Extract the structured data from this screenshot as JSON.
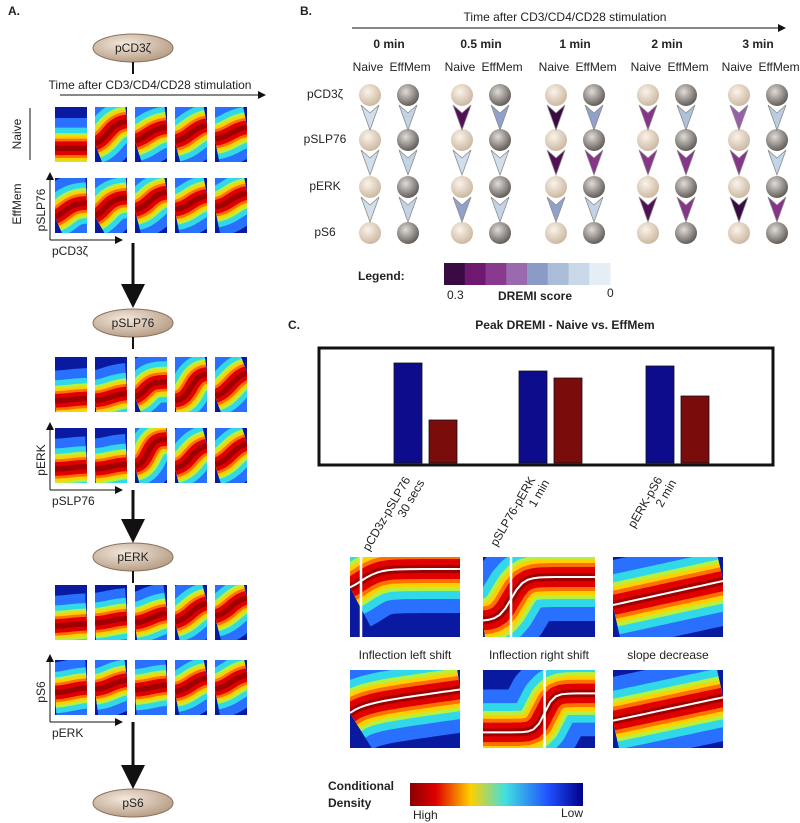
{
  "panel_a": {
    "label": "A.",
    "nodes": [
      "pCD3ζ",
      "pSLP76",
      "pERK",
      "pS6"
    ],
    "time_axis": "Time after CD3/CD4/CD28 stimulation",
    "row_labels": [
      "Naive",
      "EffMem"
    ],
    "plots": [
      {
        "y_label": "pSLP76",
        "x_label": "pCD3ζ"
      },
      {
        "y_label": "pERK",
        "x_label": "pSLP76"
      },
      {
        "y_label": "pS6",
        "x_label": "pERK"
      }
    ]
  },
  "panel_b": {
    "label": "B.",
    "title": "Time after CD3/CD4/CD28 stimulation",
    "times": [
      "0 min",
      "0.5 min",
      "1 min",
      "2 min",
      "3 min"
    ],
    "populations": [
      "Naive",
      "EffMem"
    ],
    "proteins": [
      "pCD3ζ",
      "pSLP76",
      "pERK",
      "pS6"
    ],
    "scores": [
      [
        [
          0.03,
          0.03,
          0.03
        ],
        [
          0.05,
          0.05,
          0.05
        ]
      ],
      [
        [
          0.28,
          0.03,
          0.12
        ],
        [
          0.12,
          0.03,
          0.05
        ]
      ],
      [
        [
          0.3,
          0.28,
          0.12
        ],
        [
          0.12,
          0.22,
          0.05
        ]
      ],
      [
        [
          0.22,
          0.22,
          0.28
        ],
        [
          0.08,
          0.22,
          0.22
        ]
      ],
      [
        [
          0.18,
          0.22,
          0.3
        ],
        [
          0.06,
          0.05,
          0.22
        ]
      ]
    ],
    "legend": {
      "title": "Legend:",
      "label": "DREMI score",
      "ticks": [
        0.3,
        0
      ],
      "colors": [
        "#3a0a42",
        "#6e1870",
        "#8a3a8e",
        "#9a6aae",
        "#8c9ac8",
        "#a9bdd9",
        "#c8d8e8",
        "#e6eef5"
      ]
    }
  },
  "chart_data": {
    "type": "bar",
    "title": "Peak DREMI - Naive vs. EffMem",
    "categories": [
      "pCD3z-pSLP76",
      "pSLP76-pERK",
      "pERK-pS6"
    ],
    "category_times": [
      "30 secs",
      "1 min",
      "2 min"
    ],
    "series": [
      {
        "color": "#0c0c8c",
        "values": [
          100,
          92,
          97
        ]
      },
      {
        "color": "#7a0c0c",
        "values": [
          43,
          85,
          67
        ]
      }
    ],
    "ylim": [
      0,
      143
    ]
  },
  "panel_c": {
    "label": "C.",
    "shifts": [
      "Inflection left shift",
      "Inflection right shift",
      "slope decrease"
    ],
    "colorbar": {
      "title": [
        "Conditional",
        "Density"
      ],
      "high": "High",
      "low": "Low"
    }
  }
}
